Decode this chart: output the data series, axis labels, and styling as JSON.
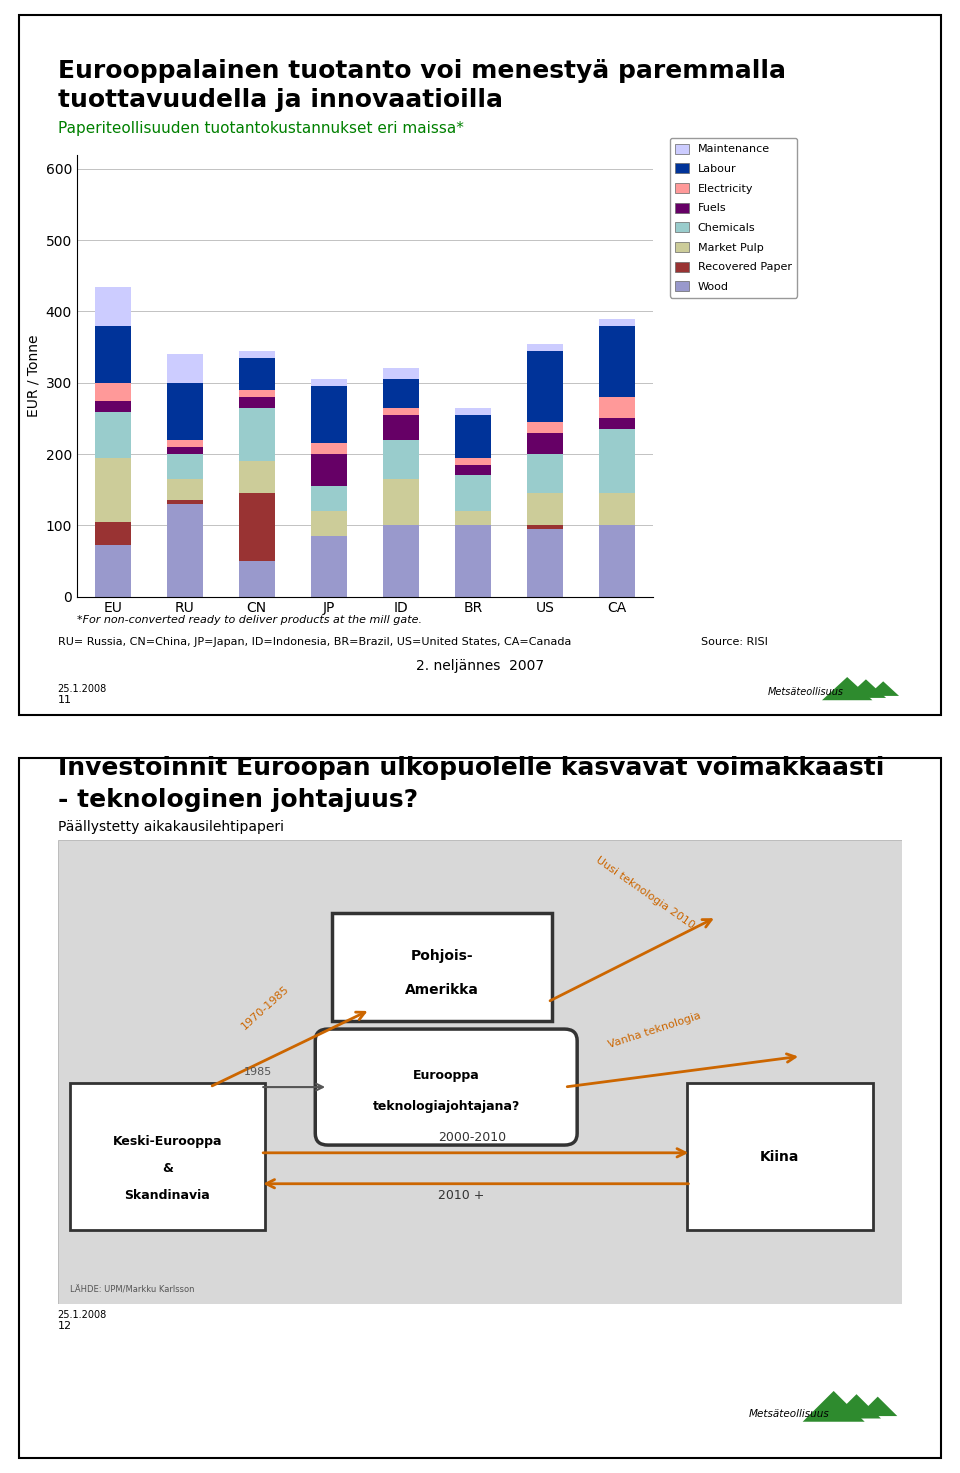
{
  "slide1": {
    "title_line1": "Eurooppalainen tuotanto voi menestyä paremmalla",
    "title_line2": "tuottavuudella ja innovaatioilla",
    "subtitle": "Paperiteollisuuden tuotantokustannukset eri maissa*",
    "title_color": "#000000",
    "subtitle_color": "#008000",
    "categories": [
      "EU",
      "RU",
      "CN",
      "JP",
      "ID",
      "BR",
      "US",
      "CA"
    ],
    "data": {
      "Wood": [
        72,
        130,
        50,
        85,
        100,
        100,
        95,
        100
      ],
      "Recovered Paper": [
        32,
        5,
        95,
        0,
        0,
        0,
        5,
        0
      ],
      "Market Pulp": [
        90,
        30,
        45,
        35,
        65,
        20,
        45,
        45
      ],
      "Chemicals": [
        65,
        35,
        75,
        35,
        55,
        50,
        55,
        90
      ],
      "Fuels": [
        15,
        10,
        15,
        45,
        35,
        15,
        30,
        15
      ],
      "Electricity": [
        25,
        10,
        10,
        15,
        10,
        10,
        15,
        30
      ],
      "Labour": [
        80,
        80,
        45,
        80,
        40,
        60,
        100,
        100
      ],
      "Maintenance": [
        55,
        40,
        10,
        10,
        15,
        10,
        10,
        10
      ]
    },
    "colors": {
      "Wood": "#9999CC",
      "Recovered Paper": "#993333",
      "Market Pulp": "#CCCC99",
      "Chemicals": "#99CCCC",
      "Fuels": "#660066",
      "Electricity": "#FF9999",
      "Labour": "#003399",
      "Maintenance": "#CCCCFF"
    },
    "ylabel": "EUR / Tonne",
    "ylim": [
      0,
      620
    ],
    "yticks": [
      0,
      100,
      200,
      300,
      400,
      500,
      600
    ],
    "footnote1": "*For non-converted ready to deliver products at the mill gate.",
    "footnote2": "RU= Russia, CN=China, JP=Japan, ID=Indonesia, BR=Brazil, US=United States, CA=Canada",
    "source": "Source: RISI",
    "date": "2. neljännes  2007",
    "page_date": "25.1.2008",
    "page_num": "11"
  },
  "slide2": {
    "title_line1": "Investoinnit Euroopan ulkopuolelle kasvavat voimakkaasti",
    "title_line2": "- teknologinen johtajuus?",
    "subtitle": "Päällystetty aikakausilehtipaperi",
    "page_date": "25.1.2008",
    "page_num": "12",
    "bg_color": "#E0E0E0",
    "box_bg": "#FFFFFF",
    "arrow_color": "#CC6600",
    "dark_arrow_color": "#333333"
  },
  "logo_color": "#2E8B2E",
  "border_color": "#000000",
  "bg_white": "#FFFFFF"
}
